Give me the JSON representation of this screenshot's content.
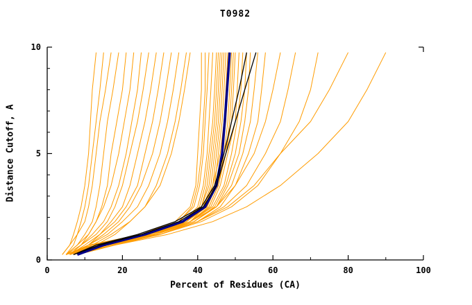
{
  "chart_data": {
    "type": "line",
    "title": "T0982",
    "xlabel": "Percent of Residues (CA)",
    "ylabel": "Distance Cutoff, A",
    "xlim": [
      0,
      100
    ],
    "ylim": [
      0,
      10
    ],
    "xticks": [
      0,
      20,
      40,
      60,
      80,
      100
    ],
    "yticks": [
      0,
      5,
      10
    ],
    "grid": false,
    "legend": "none",
    "colors": {
      "orange": "#FF9C00",
      "navy": "#00008B",
      "black": "#000000",
      "axis": "#000000"
    },
    "y_grid": [
      0.25,
      0.7,
      1.2,
      1.8,
      2.5,
      3.5,
      5,
      6.5,
      8,
      9.75
    ],
    "orange_curves": [
      [
        4,
        6,
        7,
        8,
        9,
        10,
        11,
        11.5,
        12,
        13
      ],
      [
        5,
        7,
        8,
        9,
        10,
        11,
        12,
        13,
        14,
        15
      ],
      [
        4,
        6,
        8,
        10,
        11,
        12,
        13,
        14,
        15.5,
        17
      ],
      [
        5,
        8,
        10,
        12,
        13,
        14,
        15,
        16,
        17.5,
        19
      ],
      [
        6,
        9,
        11,
        13,
        14.5,
        16,
        17,
        18.5,
        20,
        21
      ],
      [
        5,
        8,
        11,
        13,
        15,
        17,
        19,
        20.5,
        22,
        23
      ],
      [
        6,
        9,
        12,
        15,
        17,
        19,
        21,
        22.5,
        24,
        25
      ],
      [
        5,
        9,
        13,
        16,
        18,
        20,
        22,
        24,
        25.5,
        27
      ],
      [
        7,
        11,
        14,
        17,
        20,
        22,
        24,
        26,
        27.5,
        29
      ],
      [
        6,
        10,
        14,
        18,
        21,
        24,
        26,
        28,
        29.5,
        31
      ],
      [
        7,
        11,
        15,
        19,
        22,
        25,
        28,
        30,
        31.5,
        33
      ],
      [
        6,
        11,
        16,
        20,
        24,
        27,
        30,
        32,
        33.5,
        35
      ],
      [
        8,
        13,
        18,
        22,
        26,
        29,
        32,
        34,
        35.5,
        37
      ],
      [
        7,
        12,
        17,
        22,
        26,
        30,
        33,
        35,
        36.5,
        38
      ],
      [
        5,
        12,
        25,
        34,
        38,
        39.5,
        40,
        40.5,
        41,
        41
      ],
      [
        6,
        14,
        27,
        35,
        38.5,
        40,
        41,
        41.5,
        42,
        42
      ],
      [
        5,
        13,
        26,
        35,
        39,
        40.5,
        41.5,
        42,
        42.5,
        43
      ],
      [
        7,
        15,
        28,
        36,
        40,
        41.5,
        42.5,
        43,
        43.5,
        44
      ],
      [
        6,
        14,
        27,
        36,
        40.5,
        42,
        43,
        44,
        44.5,
        45
      ],
      [
        8,
        16,
        29,
        37,
        41,
        42.5,
        43.5,
        44.5,
        45,
        45.5
      ],
      [
        5,
        12,
        26,
        36,
        41,
        43,
        44,
        45,
        45.5,
        46
      ],
      [
        7,
        15,
        28,
        37,
        41.5,
        43.5,
        44.5,
        45.5,
        46,
        46.5
      ],
      [
        6,
        13,
        27,
        37,
        42,
        44,
        45,
        46,
        46.5,
        47
      ],
      [
        8,
        16,
        29,
        38,
        42,
        44.5,
        45.5,
        46.5,
        47,
        47.5
      ],
      [
        5,
        11,
        25,
        36,
        41.5,
        44,
        46,
        47,
        47.5,
        48
      ],
      [
        7,
        14,
        28,
        37,
        42.5,
        45,
        46.5,
        47.5,
        48,
        48.5
      ],
      [
        6,
        13,
        27,
        38,
        43,
        45.5,
        47,
        48,
        48.5,
        49
      ],
      [
        8,
        15,
        29,
        38,
        43,
        45.5,
        47.5,
        48.5,
        49,
        49.5
      ],
      [
        5,
        12,
        26,
        37,
        42.5,
        45,
        47.5,
        49,
        49.5,
        50
      ],
      [
        7,
        14,
        28,
        38,
        43.5,
        46,
        48,
        50,
        50.5,
        51
      ],
      [
        6,
        13,
        27,
        38,
        44,
        47,
        49,
        50.5,
        51.5,
        52
      ],
      [
        8,
        16,
        30,
        39,
        44.5,
        47.5,
        50,
        51.5,
        52.5,
        53
      ],
      [
        7,
        15,
        29,
        39,
        45,
        48,
        51,
        52.5,
        53.5,
        54
      ],
      [
        6,
        14,
        28,
        39,
        45,
        49,
        52,
        54,
        55,
        56
      ],
      [
        8,
        16,
        30,
        40,
        46,
        50,
        53.5,
        56,
        57,
        58
      ],
      [
        7,
        15,
        28,
        38,
        45,
        50,
        55,
        58,
        60,
        62
      ],
      [
        8,
        17,
        30,
        40,
        47,
        53,
        58,
        62,
        64,
        66
      ],
      [
        7,
        16,
        30,
        41,
        49,
        56,
        62,
        67,
        70,
        72
      ],
      [
        8,
        18,
        30,
        40,
        48,
        55,
        62,
        70,
        75,
        80
      ],
      [
        8,
        18,
        32,
        44,
        53,
        62,
        72,
        80,
        85,
        90
      ]
    ],
    "navy_curve": [
      8,
      15,
      26,
      36,
      42,
      45,
      46.5,
      47.2,
      47.8,
      48.5
    ],
    "black_curves": [
      [
        7,
        13,
        24,
        34,
        41,
        44.5,
        47,
        49,
        51,
        53
      ],
      [
        7,
        14,
        25,
        35,
        41.5,
        45,
        47.5,
        50,
        52.5,
        55.5
      ]
    ]
  }
}
